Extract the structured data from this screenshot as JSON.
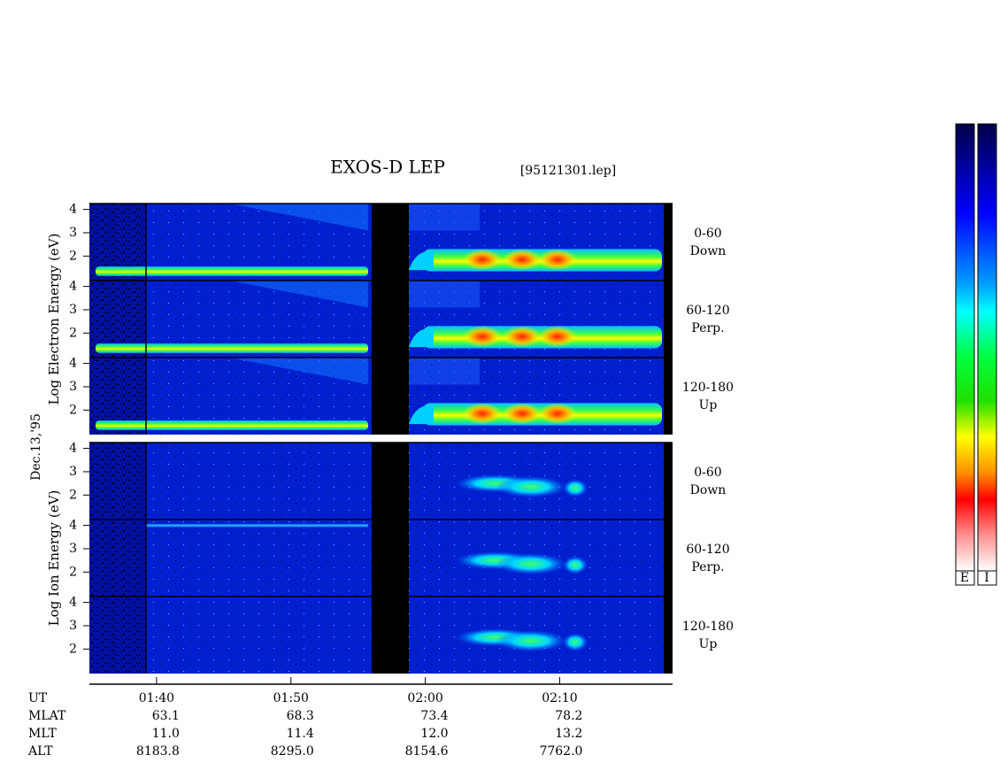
{
  "chart_data": {
    "type": "spectrogram",
    "title": "EXOS-D LEP",
    "file_label": "[95121301.lep]",
    "date_label": "Dec.13,'95",
    "ylim": [
      0.95,
      4.25
    ],
    "yticks": [
      2,
      3,
      4
    ],
    "xlim": [
      35,
      78.4
    ],
    "xticks": [
      {
        "value": 40,
        "label": "01:40"
      },
      {
        "value": 50,
        "label": "01:50"
      },
      {
        "value": 60,
        "label": "02:00"
      },
      {
        "value": 70,
        "label": "02:10"
      }
    ],
    "groups": [
      {
        "axis_label": "Log Electron Energy (eV)",
        "species": "electron",
        "panels": [
          {
            "angle": "0-60",
            "direction": "Down"
          },
          {
            "angle": "60-120",
            "direction": "Perp."
          },
          {
            "angle": "120-180",
            "direction": "Up"
          }
        ]
      },
      {
        "axis_label": "Log Ion Energy (eV)",
        "species": "ion",
        "panels": [
          {
            "angle": "0-60",
            "direction": "Down"
          },
          {
            "angle": "60-120",
            "direction": "Perp."
          },
          {
            "angle": "120-180",
            "direction": "Up"
          }
        ]
      }
    ],
    "footer": {
      "rows": [
        {
          "label": "UT",
          "values": []
        },
        {
          "label": "MLAT",
          "values": [
            "63.1",
            "68.3",
            "73.4",
            "78.2"
          ]
        },
        {
          "label": "MLT",
          "values": [
            "11.0",
            "11.4",
            "12.0",
            "13.2"
          ]
        },
        {
          "label": "ALT",
          "values": [
            "8183.8",
            "8295.0",
            "8154.6",
            "7762.0"
          ]
        }
      ]
    },
    "colorbar_labels": [
      "E",
      "I"
    ]
  }
}
